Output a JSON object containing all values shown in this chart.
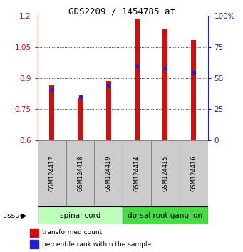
{
  "title": "GDS2209 / 1454785_at",
  "samples": [
    "GSM124417",
    "GSM124418",
    "GSM124419",
    "GSM124414",
    "GSM124415",
    "GSM124416"
  ],
  "red_values": [
    0.865,
    0.805,
    0.885,
    1.185,
    1.135,
    1.085
  ],
  "blue_values": [
    0.845,
    0.81,
    0.865,
    0.955,
    0.945,
    0.925
  ],
  "ylim_left": [
    0.6,
    1.2
  ],
  "ylim_right": [
    0,
    100
  ],
  "yticks_left": [
    0.6,
    0.75,
    0.9,
    1.05,
    1.2
  ],
  "yticks_right": [
    0,
    25,
    50,
    75,
    100
  ],
  "ytick_labels_right": [
    "0",
    "25",
    "50",
    "75",
    "100%"
  ],
  "red_color": "#cc1111",
  "blue_color": "#2222cc",
  "spinal_color": "#bbffbb",
  "ganglion_color": "#44dd44",
  "sample_box_color": "#cccccc",
  "left_tick_color": "#cc1111",
  "right_tick_color": "#2222cc",
  "baseline": 0.6,
  "legend_red": "transformed count",
  "legend_blue": "percentile rank within the sample",
  "tissue_label": "tissue"
}
